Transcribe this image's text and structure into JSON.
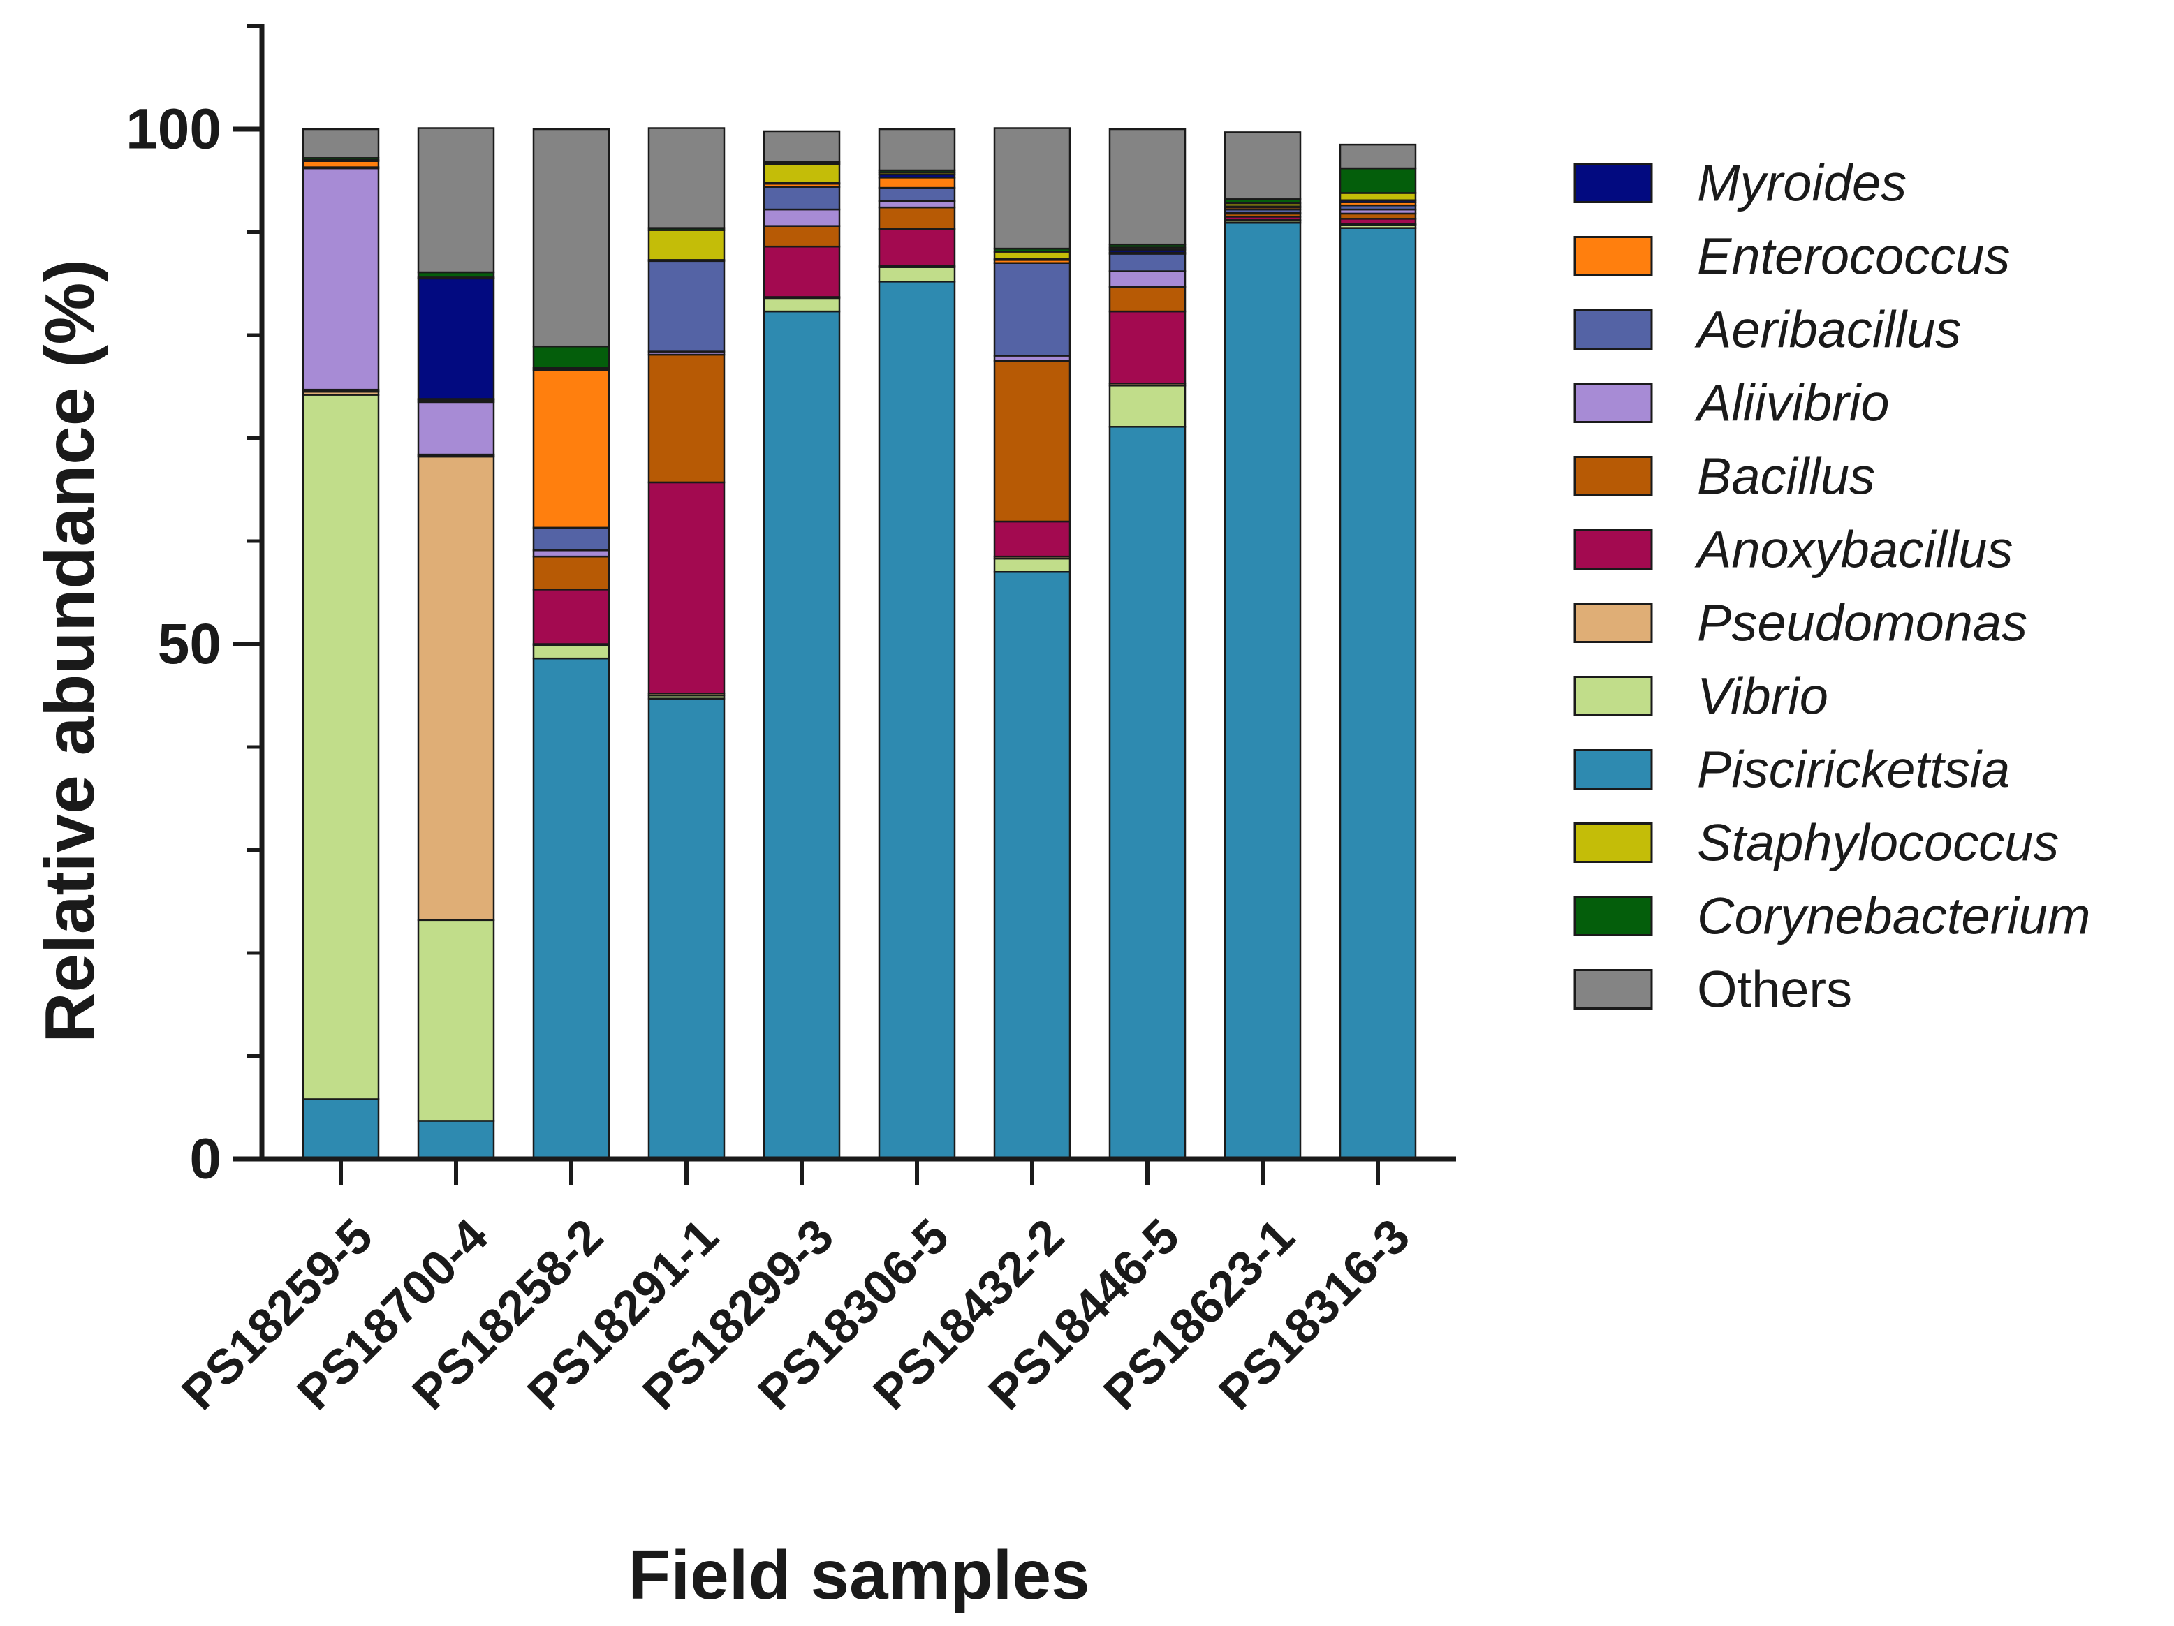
{
  "chart_data": {
    "type": "bar",
    "stacked": true,
    "title": "",
    "xlabel": "Field samples",
    "ylabel": "Relative abundance (%)",
    "ylim": [
      0,
      110
    ],
    "yticks": [
      0,
      50,
      100
    ],
    "ytick_labels": [
      "0",
      "50",
      "100"
    ],
    "grid": false,
    "legend_position": "right",
    "categories": [
      "PS18259-5",
      "PS18700-4",
      "PS18258-2",
      "PS18291-1",
      "PS18299-3",
      "PS18306-5",
      "PS18432-2",
      "PS18446-5",
      "PS18623-1",
      "PS18316-3"
    ],
    "series": [
      {
        "name": "Piscirickettsia",
        "italic": true,
        "color": "#2E8AB0",
        "values": [
          5.8,
          3.7,
          48.6,
          44.7,
          82.3,
          85.2,
          57.0,
          71.1,
          90.9,
          90.4
        ]
      },
      {
        "name": "Vibrio",
        "italic": true,
        "color": "#C1DD8A",
        "values": [
          68.4,
          19.5,
          1.3,
          0.3,
          1.3,
          1.4,
          1.3,
          4.0,
          0.2,
          0.3
        ]
      },
      {
        "name": "Pseudomonas",
        "italic": true,
        "color": "#DFAE76",
        "values": [
          0.3,
          45.0,
          0.1,
          0.2,
          0.1,
          0.1,
          0.2,
          0.2,
          0.1,
          0.1
        ]
      },
      {
        "name": "Anoxybacillus",
        "italic": true,
        "color": "#A30A50",
        "values": [
          0.1,
          0.1,
          5.3,
          20.5,
          4.9,
          3.6,
          3.4,
          7.0,
          0.3,
          0.5
        ]
      },
      {
        "name": "Bacillus",
        "italic": true,
        "color": "#B75A05",
        "values": [
          0.1,
          0.1,
          3.2,
          12.4,
          2.0,
          2.1,
          15.6,
          2.4,
          0.3,
          0.5
        ]
      },
      {
        "name": "Aliivibrio",
        "italic": true,
        "color": "#A78BD5",
        "values": [
          21.5,
          5.1,
          0.6,
          0.3,
          1.6,
          0.6,
          0.5,
          1.5,
          0.1,
          0.4
        ]
      },
      {
        "name": "Aeribacillus",
        "italic": true,
        "color": "#5463A5",
        "values": [
          0.1,
          0.2,
          2.2,
          8.8,
          2.2,
          1.3,
          9.0,
          1.7,
          0.3,
          0.4
        ]
      },
      {
        "name": "Enterococcus",
        "italic": true,
        "color": "#FF7F0E",
        "values": [
          0.6,
          0.1,
          15.3,
          0.1,
          0.3,
          1.0,
          0.3,
          0.1,
          0.2,
          0.3
        ]
      },
      {
        "name": "Myroides",
        "italic": true,
        "color": "#020A80",
        "values": [
          0.0,
          11.7,
          0.0,
          0.0,
          0.1,
          0.3,
          0.1,
          0.3,
          0.1,
          0.2
        ]
      },
      {
        "name": "Staphylococcus",
        "italic": true,
        "color": "#C4BD08",
        "values": [
          0.1,
          0.1,
          0.2,
          2.9,
          1.8,
          0.2,
          0.7,
          0.2,
          0.3,
          0.7
        ]
      },
      {
        "name": "Corynebacterium",
        "italic": true,
        "color": "#045E0B",
        "values": [
          0.2,
          0.5,
          2.1,
          0.2,
          0.2,
          0.2,
          0.3,
          0.3,
          0.4,
          2.4
        ]
      },
      {
        "name": "Others",
        "italic": false,
        "color": "#848484",
        "values": [
          2.8,
          14.0,
          21.1,
          9.7,
          3.0,
          4.0,
          11.7,
          11.2,
          6.5,
          2.3
        ]
      }
    ],
    "legend_order": [
      "Myroides",
      "Enterococcus",
      "Aeribacillus",
      "Aliivibrio",
      "Bacillus",
      "Anoxybacillus",
      "Pseudomonas",
      "Vibrio",
      "Piscirickettsia",
      "Staphylococcus",
      "Corynebacterium",
      "Others"
    ]
  }
}
